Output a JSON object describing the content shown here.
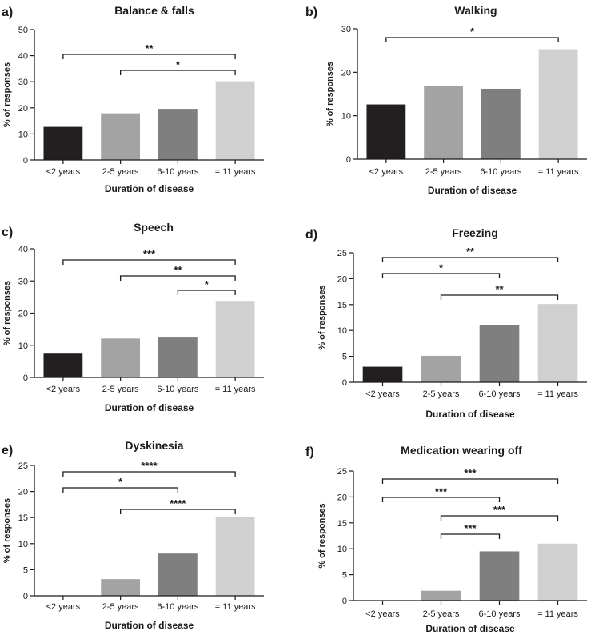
{
  "colors": {
    "axis": "#1a1a1a",
    "bars": [
      "#231f20",
      "#a3a3a3",
      "#7f7f7f",
      "#d0d0d0"
    ]
  },
  "chart_data": [
    {
      "panel": "a)",
      "type": "bar",
      "title": "Balance & falls",
      "xlabel": "Duration of disease",
      "ylabel": "% of responses",
      "categories": [
        "<2 years",
        "2-5 years",
        "6-10 years",
        "= 11 years"
      ],
      "values": [
        12.7,
        17.9,
        19.6,
        30.2
      ],
      "ylim": [
        0,
        50
      ],
      "yticks": [
        0,
        10,
        20,
        30,
        40,
        50
      ],
      "significance": [
        {
          "from": 0,
          "to": 3,
          "label": "**"
        },
        {
          "from": 1,
          "to": 3,
          "label": "*"
        }
      ]
    },
    {
      "panel": "b)",
      "type": "bar",
      "title": "Walking",
      "xlabel": "Duration of disease",
      "ylabel": "% of responses",
      "categories": [
        "<2 years",
        "2-5 years",
        "6-10 years",
        "= 11 years"
      ],
      "values": [
        12.6,
        16.9,
        16.2,
        25.3
      ],
      "ylim": [
        0,
        30
      ],
      "yticks": [
        0,
        10,
        20,
        30
      ],
      "significance": [
        {
          "from": 0,
          "to": 3,
          "label": "*"
        }
      ]
    },
    {
      "panel": "c)",
      "type": "bar",
      "title": "Speech",
      "xlabel": "Duration of disease",
      "ylabel": "% of responses",
      "categories": [
        "<2 years",
        "2-5 years",
        "6-10 years",
        "= 11 years"
      ],
      "values": [
        7.4,
        12.1,
        12.4,
        23.8
      ],
      "ylim": [
        0,
        40
      ],
      "yticks": [
        0,
        10,
        20,
        30,
        40
      ],
      "significance": [
        {
          "from": 0,
          "to": 3,
          "label": "***"
        },
        {
          "from": 1,
          "to": 3,
          "label": "**"
        },
        {
          "from": 2,
          "to": 3,
          "label": "*"
        }
      ]
    },
    {
      "panel": "d)",
      "type": "bar",
      "title": "Freezing",
      "xlabel": "Duration of disease",
      "ylabel": "% of responses",
      "categories": [
        "<2 years",
        "2-5 years",
        "6-10 years",
        "= 11 years"
      ],
      "values": [
        3.0,
        5.1,
        11.0,
        15.1
      ],
      "ylim": [
        0,
        25
      ],
      "yticks": [
        0,
        5,
        10,
        15,
        20,
        25
      ],
      "significance": [
        {
          "from": 0,
          "to": 3,
          "label": "**"
        },
        {
          "from": 0,
          "to": 2,
          "label": "*"
        },
        {
          "from": 1,
          "to": 3,
          "label": "**"
        }
      ]
    },
    {
      "panel": "e)",
      "type": "bar",
      "title": "Dyskinesia",
      "xlabel": "Duration of disease",
      "ylabel": "% of responses",
      "categories": [
        "<2 years",
        "2-5 years",
        "6-10 years",
        "= 11 years"
      ],
      "values": [
        0,
        3.2,
        8.1,
        15.1
      ],
      "ylim": [
        0,
        25
      ],
      "yticks": [
        0,
        5,
        10,
        15,
        20,
        25
      ],
      "significance": [
        {
          "from": 0,
          "to": 3,
          "label": "****"
        },
        {
          "from": 0,
          "to": 2,
          "label": "*"
        },
        {
          "from": 1,
          "to": 3,
          "label": "****"
        }
      ]
    },
    {
      "panel": "f)",
      "type": "bar",
      "title": "Medication wearing off",
      "xlabel": "Duration of disease",
      "ylabel": "% of responses",
      "categories": [
        "<2 years",
        "2-5 years",
        "6-10 years",
        "= 11 years"
      ],
      "values": [
        0,
        1.9,
        9.5,
        11.0
      ],
      "ylim": [
        0,
        25
      ],
      "yticks": [
        0,
        5,
        10,
        15,
        20,
        25
      ],
      "significance": [
        {
          "from": 0,
          "to": 3,
          "label": "***"
        },
        {
          "from": 0,
          "to": 2,
          "label": "***"
        },
        {
          "from": 1,
          "to": 3,
          "label": "***"
        },
        {
          "from": 1,
          "to": 2,
          "label": "***"
        }
      ]
    }
  ]
}
